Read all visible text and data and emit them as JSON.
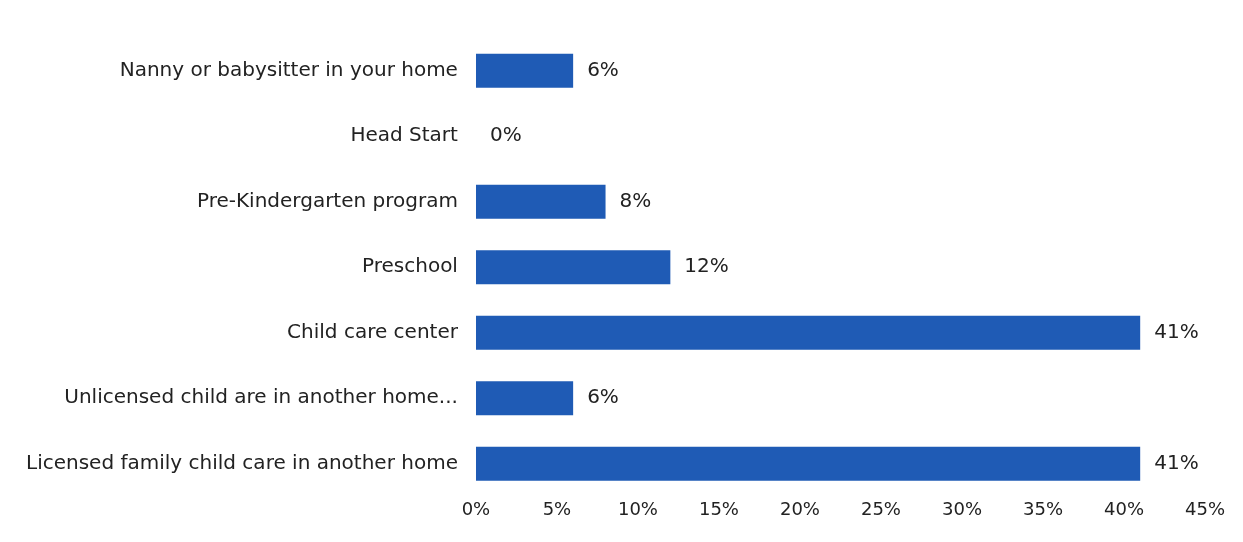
{
  "chart_data": {
    "type": "bar",
    "orientation": "horizontal",
    "categories": [
      "Nanny or babysitter in your home",
      "Head Start",
      "Pre-Kindergarten program",
      "Preschool",
      "Child care center",
      "Unlicensed child are in another home...",
      "Licensed family child care in another home"
    ],
    "values": [
      6,
      0,
      8,
      12,
      41,
      6,
      41
    ],
    "value_labels": [
      "6%",
      "0%",
      "8%",
      "12%",
      "41%",
      "6%",
      "41%"
    ],
    "color": "#1f5bb5",
    "xlim": [
      0,
      45
    ],
    "xticks": [
      {
        "value": 0,
        "label": "0%"
      },
      {
        "value": 5,
        "label": "5%"
      },
      {
        "value": 10,
        "label": "10%"
      },
      {
        "value": 15,
        "label": "15%"
      },
      {
        "value": 20,
        "label": "20%"
      },
      {
        "value": 25,
        "label": "25%"
      },
      {
        "value": 30,
        "label": "30%"
      },
      {
        "value": 35,
        "label": "35%"
      },
      {
        "value": 40,
        "label": "40%"
      },
      {
        "value": 45,
        "label": "45%"
      }
    ],
    "grid": false,
    "legend": false
  }
}
